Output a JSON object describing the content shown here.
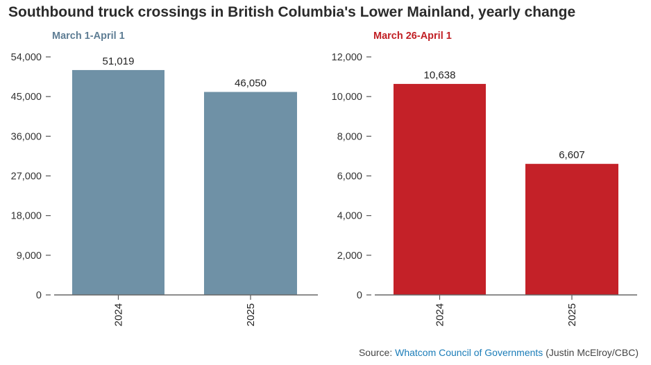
{
  "header": {
    "title": "Southbound truck crossings in British Columbia's Lower Mainland, yearly change"
  },
  "footer": {
    "prefix": "Source: ",
    "link_text": "Whatcom Council of Governments",
    "suffix": " (Justin McElroy/CBC)"
  },
  "chart_data": [
    {
      "type": "bar",
      "title": "March 1-April 1",
      "categories": [
        "2024",
        "2025"
      ],
      "values": [
        51019,
        46050
      ],
      "value_labels": [
        "51,019",
        "46,050"
      ],
      "ylim": [
        0,
        54000
      ],
      "yticks": [
        0,
        9000,
        18000,
        27000,
        36000,
        45000,
        54000
      ],
      "ytick_labels": [
        "0",
        "9,000",
        "18,000",
        "27,000",
        "36,000",
        "45,000",
        "54,000"
      ],
      "color": "#6f91a6",
      "title_color": "#5e7d94",
      "grid": false
    },
    {
      "type": "bar",
      "title": "March 26-April 1",
      "categories": [
        "2024",
        "2025"
      ],
      "values": [
        10638,
        6607
      ],
      "value_labels": [
        "10,638",
        "6,607"
      ],
      "ylim": [
        0,
        12000
      ],
      "yticks": [
        0,
        2000,
        4000,
        6000,
        8000,
        10000,
        12000
      ],
      "ytick_labels": [
        "0",
        "2,000",
        "4,000",
        "6,000",
        "8,000",
        "10,000",
        "12,000"
      ],
      "color": "#c42128",
      "title_color": "#c11f24",
      "grid": false
    }
  ]
}
